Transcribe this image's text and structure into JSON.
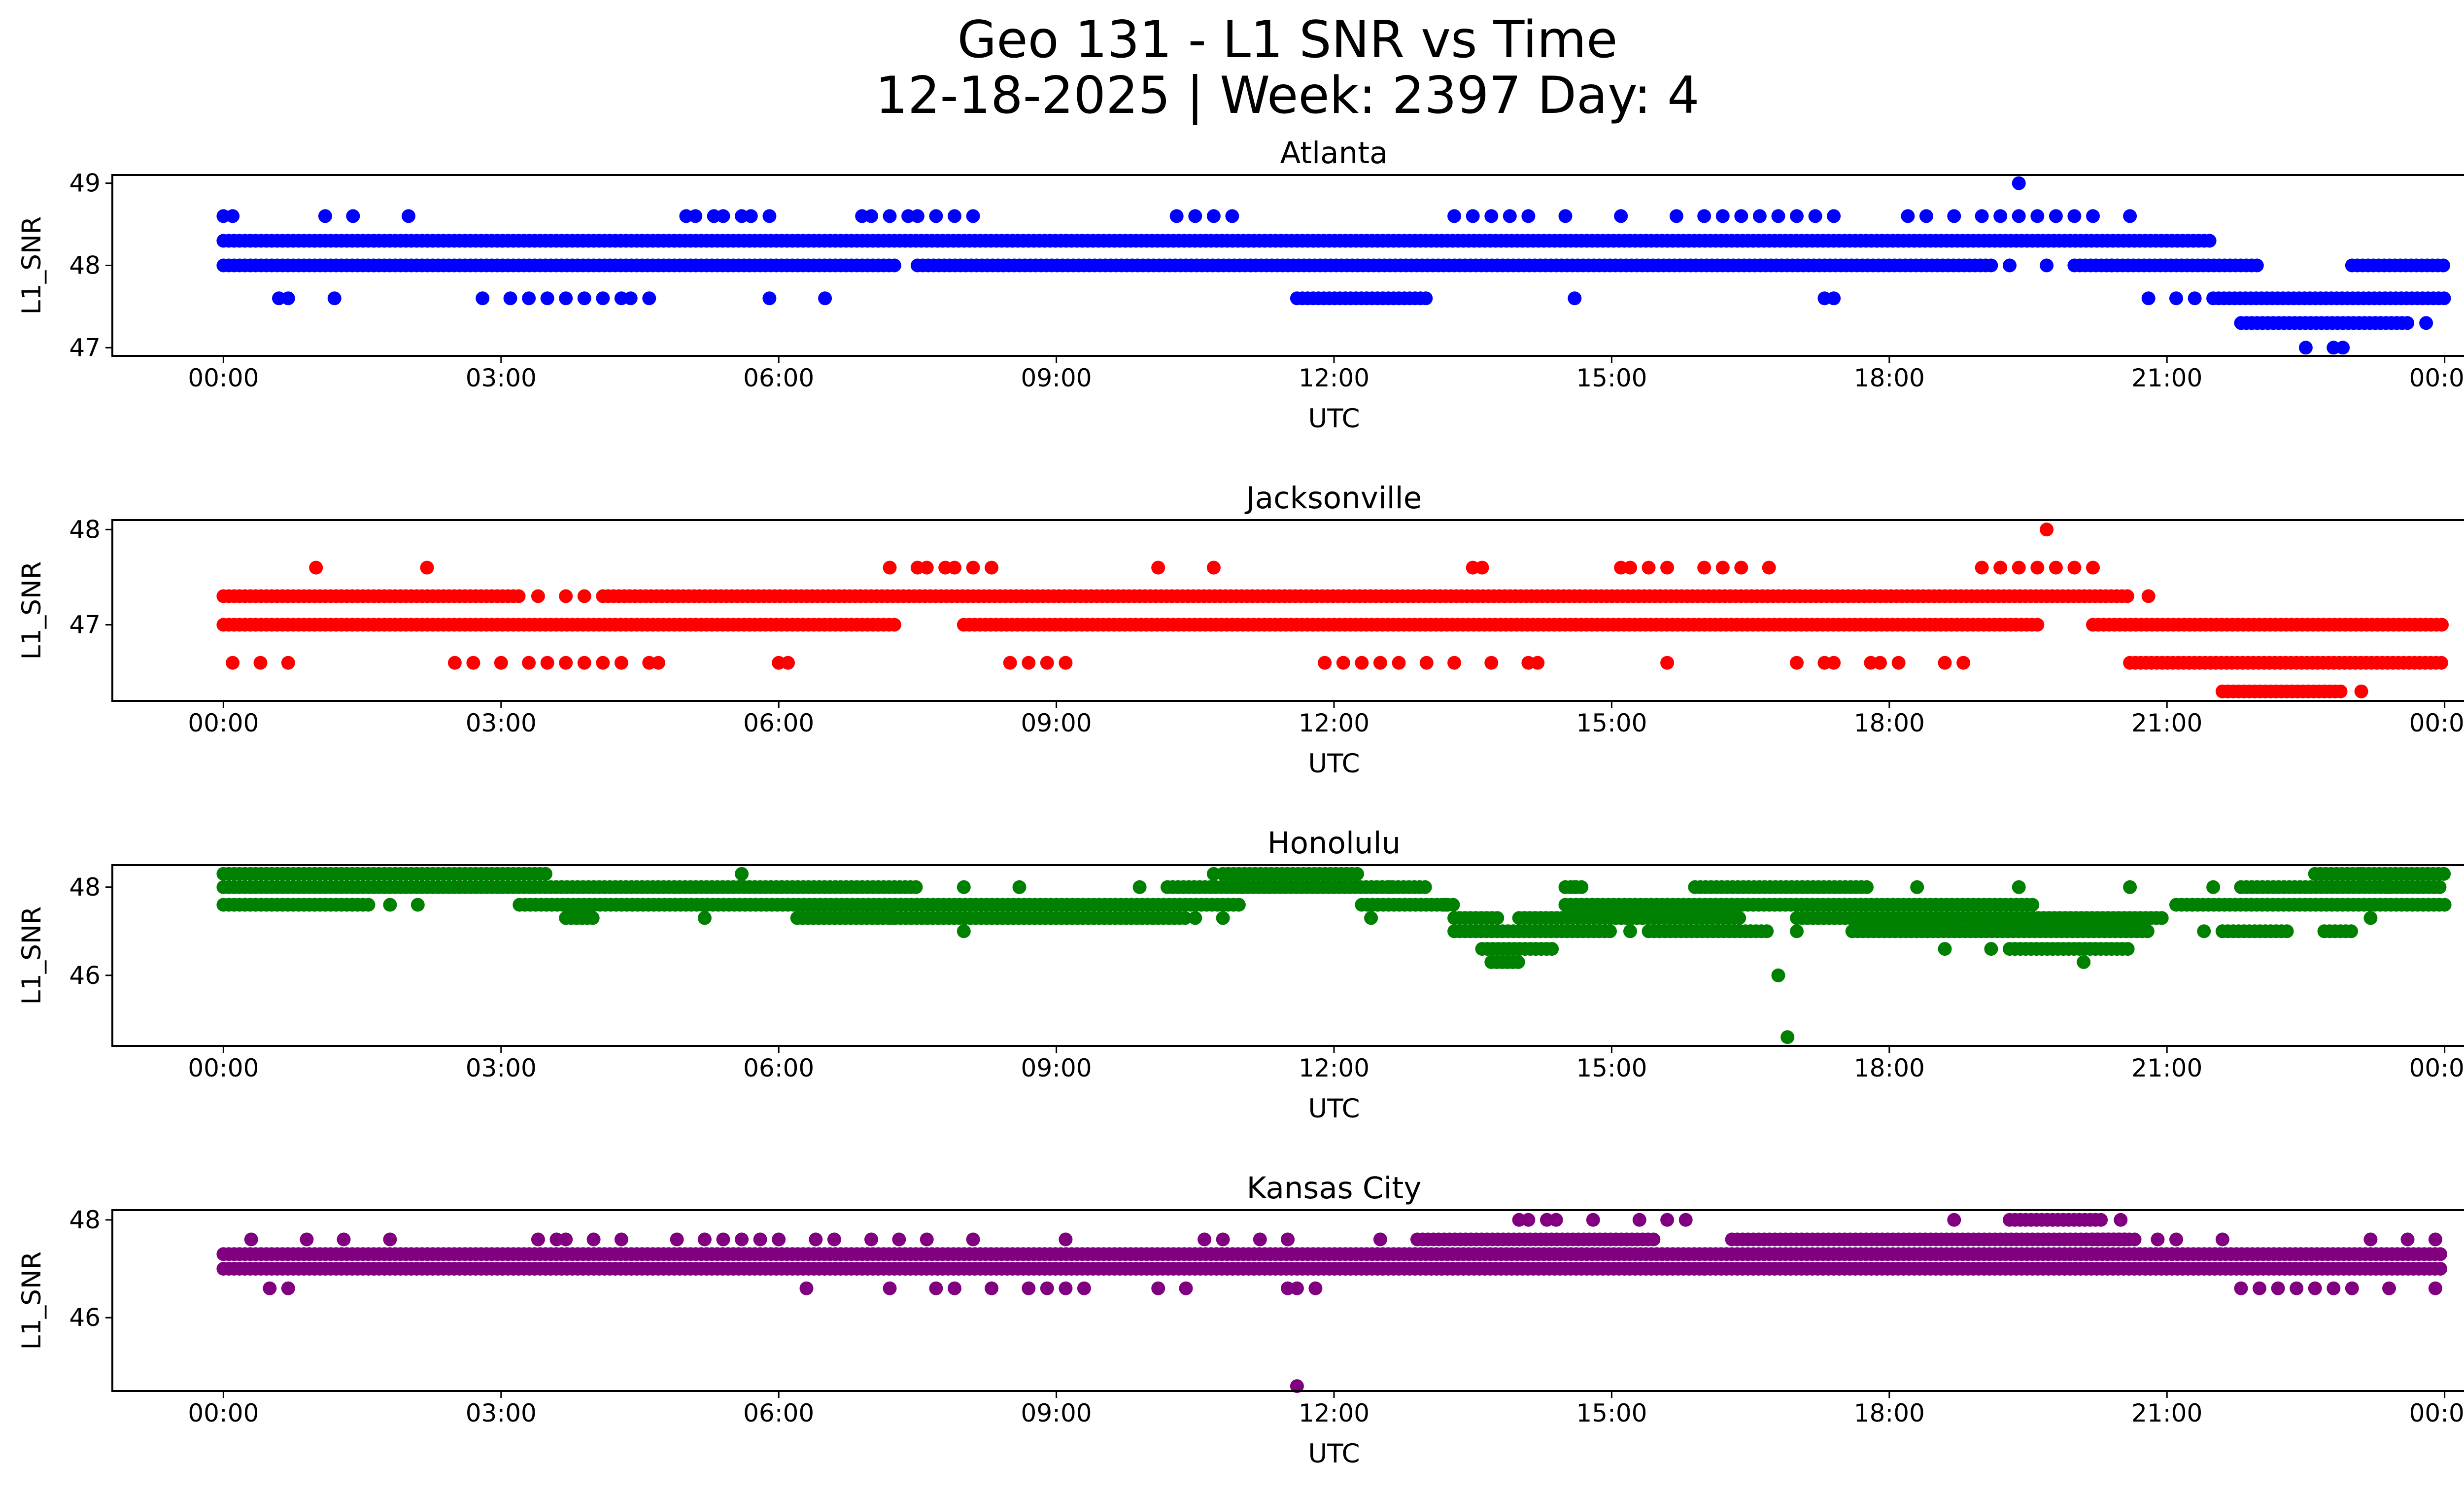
{
  "title": {
    "line1": "Geo 131 - L1 SNR vs Time",
    "line2": "12-18-2025 | Week: 2397 Day: 4"
  },
  "x_tick_labels": [
    "00:00",
    "03:00",
    "06:00",
    "09:00",
    "12:00",
    "15:00",
    "18:00",
    "21:00",
    "00:00"
  ],
  "chart_data": [
    {
      "type": "scatter",
      "title": "Atlanta",
      "xlabel": "UTC",
      "ylabel": "L1_SNR",
      "color": "#0000ff",
      "xlim": [
        -1.2,
        25.2
      ],
      "ylim": [
        46.9,
        49.1
      ],
      "yticks": [
        47,
        48,
        49
      ],
      "levels": [
        {
          "y": 48.3,
          "ranges": [
            [
              0.0,
              21.5
            ]
          ]
        },
        {
          "y": 48.0,
          "ranges": [
            [
              0.0,
              7.3
            ],
            [
              7.5,
              19.1
            ],
            [
              20.0,
              22.0
            ],
            [
              23.0,
              24.0
            ]
          ]
        },
        {
          "y": 47.6,
          "ranges": [
            [
              11.6,
              13.0
            ],
            [
              21.5,
              24.0
            ]
          ]
        },
        {
          "y": 47.3,
          "ranges": [
            [
              21.8,
              23.6
            ]
          ]
        }
      ],
      "scatter": {
        "48.6": [
          0.0,
          0.1,
          1.1,
          1.4,
          2.0,
          5.0,
          5.1,
          5.3,
          5.4,
          5.6,
          5.7,
          5.9,
          6.9,
          7.0,
          7.2,
          7.4,
          7.5,
          7.7,
          7.9,
          8.1,
          10.3,
          10.5,
          10.7,
          10.9,
          13.3,
          13.5,
          13.7,
          13.9,
          14.1,
          14.5,
          15.1,
          15.7,
          16.0,
          16.2,
          16.4,
          16.6,
          16.8,
          17.0,
          17.2,
          17.4,
          18.2,
          18.4,
          18.7,
          19.0,
          19.2,
          19.4,
          19.6,
          19.8,
          20.0,
          20.2,
          20.6
        ],
        "48.0": [
          19.3,
          19.7,
          20.4
        ],
        "47.6": [
          0.6,
          0.7,
          1.2,
          2.8,
          3.1,
          3.3,
          3.5,
          3.7,
          3.9,
          4.1,
          4.3,
          4.4,
          4.6,
          5.9,
          6.5,
          14.6,
          17.3,
          17.4,
          20.8,
          21.1,
          21.3
        ],
        "47.3": [
          23.8
        ],
        "47.0": [
          22.5,
          22.8,
          22.9
        ],
        "49.0": [
          19.4
        ]
      }
    },
    {
      "type": "scatter",
      "title": "Jacksonville",
      "xlabel": "UTC",
      "ylabel": "L1_SNR",
      "color": "#ff0000",
      "xlim": [
        -1.2,
        25.2
      ],
      "ylim": [
        46.2,
        48.1
      ],
      "yticks": [
        47,
        48
      ],
      "levels": [
        {
          "y": 47.3,
          "ranges": [
            [
              0.0,
              3.2
            ],
            [
              4.1,
              20.6
            ]
          ]
        },
        {
          "y": 47.0,
          "ranges": [
            [
              0.0,
              7.3
            ],
            [
              8.0,
              19.6
            ],
            [
              20.2,
              24.0
            ]
          ]
        },
        {
          "y": 46.6,
          "ranges": [
            [
              20.6,
              24.0
            ]
          ]
        },
        {
          "y": 46.3,
          "ranges": [
            [
              21.6,
              22.9
            ]
          ]
        }
      ],
      "scatter": {
        "47.6": [
          1.0,
          2.2,
          7.2,
          7.5,
          7.6,
          7.8,
          7.9,
          8.1,
          8.3,
          10.1,
          10.7,
          13.5,
          13.6,
          15.1,
          15.2,
          15.4,
          15.6,
          16.0,
          16.2,
          16.4,
          16.7,
          19.0,
          19.2,
          19.4,
          19.6,
          19.8,
          20.0,
          20.2
        ],
        "47.3": [
          3.4,
          3.7,
          3.9,
          20.8
        ],
        "46.6": [
          0.1,
          0.4,
          0.7,
          2.5,
          2.7,
          3.0,
          3.3,
          3.5,
          3.7,
          3.9,
          4.1,
          4.3,
          4.6,
          4.7,
          6.0,
          6.1,
          8.5,
          8.7,
          8.9,
          9.1,
          11.9,
          12.1,
          12.3,
          12.5,
          12.7,
          13.0,
          13.3,
          13.7,
          14.1,
          14.2,
          15.6,
          17.0,
          17.3,
          17.4,
          17.8,
          17.9,
          18.1,
          18.6,
          18.8
        ],
        "46.3": [
          23.1
        ],
        "48.0": [
          19.7
        ]
      }
    },
    {
      "type": "scatter",
      "title": "Honolulu",
      "xlabel": "UTC",
      "ylabel": "L1_SNR",
      "color": "#008000",
      "xlim": [
        -1.2,
        25.2
      ],
      "ylim": [
        44.4,
        48.5
      ],
      "yticks": [
        46,
        48
      ],
      "levels": [
        {
          "y": 48.3,
          "ranges": [
            [
              0.0,
              3.5
            ],
            [
              10.8,
              12.3
            ],
            [
              22.6,
              24.0
            ]
          ]
        },
        {
          "y": 48.0,
          "ranges": [
            [
              0.0,
              7.5
            ],
            [
              10.2,
              13.0
            ],
            [
              14.5,
              14.7
            ],
            [
              15.9,
              17.8
            ],
            [
              21.8,
              24.0
            ]
          ]
        },
        {
          "y": 47.6,
          "ranges": [
            [
              0.0,
              1.6
            ],
            [
              3.2,
              11.0
            ],
            [
              12.3,
              13.3
            ],
            [
              14.5,
              19.6
            ],
            [
              21.1,
              24.0
            ]
          ]
        },
        {
          "y": 47.3,
          "ranges": [
            [
              3.7,
              4.0
            ],
            [
              6.2,
              7.3
            ],
            [
              7.2,
              10.4
            ],
            [
              13.3,
              13.8
            ],
            [
              14.0,
              16.4
            ],
            [
              17.0,
              21.0
            ]
          ]
        },
        {
          "y": 47.0,
          "ranges": [
            [
              13.3,
              15.0
            ],
            [
              15.4,
              16.7
            ],
            [
              17.6,
              20.8
            ],
            [
              21.6,
              22.3
            ],
            [
              22.7,
              23.0
            ]
          ]
        },
        {
          "y": 46.6,
          "ranges": [
            [
              13.6,
              14.4
            ],
            [
              19.3,
              20.6
            ]
          ]
        },
        {
          "y": 46.3,
          "ranges": [
            [
              13.7,
              14.0
            ]
          ]
        }
      ],
      "scatter": {
        "48.3": [
          5.6,
          10.7,
          23.1
        ],
        "48.0": [
          8.0,
          8.6,
          9.9,
          11.0,
          11.3,
          12.6,
          14.6,
          18.3,
          19.4,
          20.6,
          21.5,
          23.4
        ],
        "47.6": [
          1.8,
          2.1,
          13.2
        ],
        "47.3": [
          5.2,
          10.5,
          10.8,
          12.4,
          23.2
        ],
        "47.0": [
          8.0,
          15.2,
          16.5,
          17.0,
          21.4
        ],
        "46.6": [
          18.6,
          19.1
        ],
        "46.3": [
          20.1
        ],
        "46.0": [
          16.8
        ],
        "44.6": [
          16.9
        ]
      }
    },
    {
      "type": "scatter",
      "title": "Kansas City",
      "xlabel": "UTC",
      "ylabel": "L1_SNR",
      "color": "#800080",
      "xlim": [
        -1.2,
        25.2
      ],
      "ylim": [
        44.5,
        48.2
      ],
      "yticks": [
        46,
        48
      ],
      "levels": [
        {
          "y": 47.6,
          "ranges": [
            [
              12.9,
              15.5
            ],
            [
              16.3,
              20.7
            ],
            [
              20.2,
              20.6
            ]
          ]
        },
        {
          "y": 47.3,
          "ranges": [
            [
              0.0,
              24.0
            ]
          ]
        },
        {
          "y": 47.0,
          "ranges": [
            [
              0.0,
              24.0
            ]
          ]
        },
        {
          "y": 48.0,
          "ranges": [
            [
              19.3,
              20.3
            ]
          ]
        }
      ],
      "scatter": {
        "47.6": [
          0.3,
          0.9,
          1.3,
          1.8,
          3.4,
          3.6,
          3.7,
          4.0,
          4.3,
          4.9,
          5.2,
          5.4,
          5.6,
          5.8,
          6.0,
          6.4,
          6.6,
          7.0,
          7.3,
          7.6,
          8.1,
          9.1,
          10.6,
          10.8,
          11.2,
          11.5,
          12.5,
          20.9,
          21.1,
          21.6,
          23.2,
          23.6,
          23.9
        ],
        "48.0": [
          14.0,
          14.1,
          14.3,
          14.4,
          14.8,
          15.3,
          15.6,
          15.8,
          18.7,
          20.5
        ],
        "46.6": [
          0.5,
          0.7,
          6.3,
          7.2,
          7.7,
          7.9,
          8.3,
          8.7,
          8.9,
          9.1,
          9.3,
          10.1,
          10.4,
          11.5,
          11.6,
          11.8,
          21.8,
          22.0,
          22.2,
          22.4,
          22.6,
          22.8,
          23.0,
          23.4,
          23.9
        ],
        "47.0": [
          16.0
        ],
        "44.6": [
          11.6
        ]
      }
    }
  ]
}
